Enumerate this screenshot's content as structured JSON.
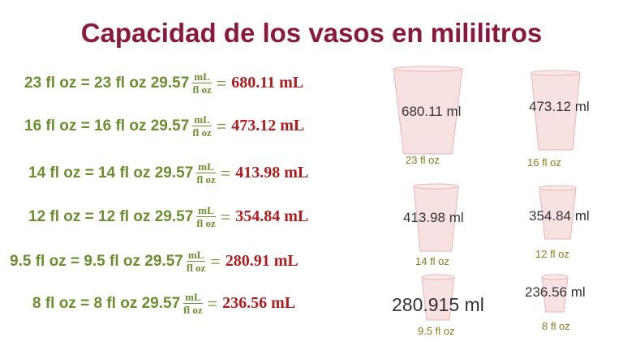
{
  "header": {
    "title": "Capacidad de los vasos en mililitros"
  },
  "equations": [
    {
      "lhs": "23 fl oz = 23 fl oz 29.57",
      "numerator": "mL",
      "denominator": "fl oz",
      "equals": "=",
      "result": "680.11 mL"
    },
    {
      "lhs": "16 fl oz = 16 fl oz 29.57",
      "numerator": "mL",
      "denominator": "fl oz",
      "equals": "=",
      "result": "473.12 mL"
    },
    {
      "lhs": "14 fl oz = 14 fl oz 29.57",
      "numerator": "mL",
      "denominator": "fl oz",
      "equals": "=",
      "result": "413.98 mL"
    },
    {
      "lhs": "12 fl oz = 12 fl oz 29.57",
      "numerator": "mL",
      "denominator": "fl oz",
      "equals": "=",
      "result": "354.84 mL"
    },
    {
      "lhs": "9.5 fl oz = 9.5 fl oz 29.57",
      "numerator": "mL",
      "denominator": "fl oz",
      "equals": "=",
      "result": "280.91 mL"
    },
    {
      "lhs": "8 fl oz = 8 fl oz 29.57",
      "numerator": "mL",
      "denominator": "fl oz",
      "equals": "=",
      "result": "236.56 mL"
    }
  ],
  "cups": [
    {
      "volume": "680.11 ml",
      "size": "23 fl oz"
    },
    {
      "volume": "473.12 ml",
      "size": "16 fl oz"
    },
    {
      "volume": "413.98 ml",
      "size": "14 fl oz"
    },
    {
      "volume": "354.84 ml",
      "size": "12 fl oz"
    },
    {
      "volume": "280.915 ml",
      "size": "9.5 fl oz"
    },
    {
      "volume": "236.56 ml",
      "size": "8 fl oz"
    }
  ]
}
